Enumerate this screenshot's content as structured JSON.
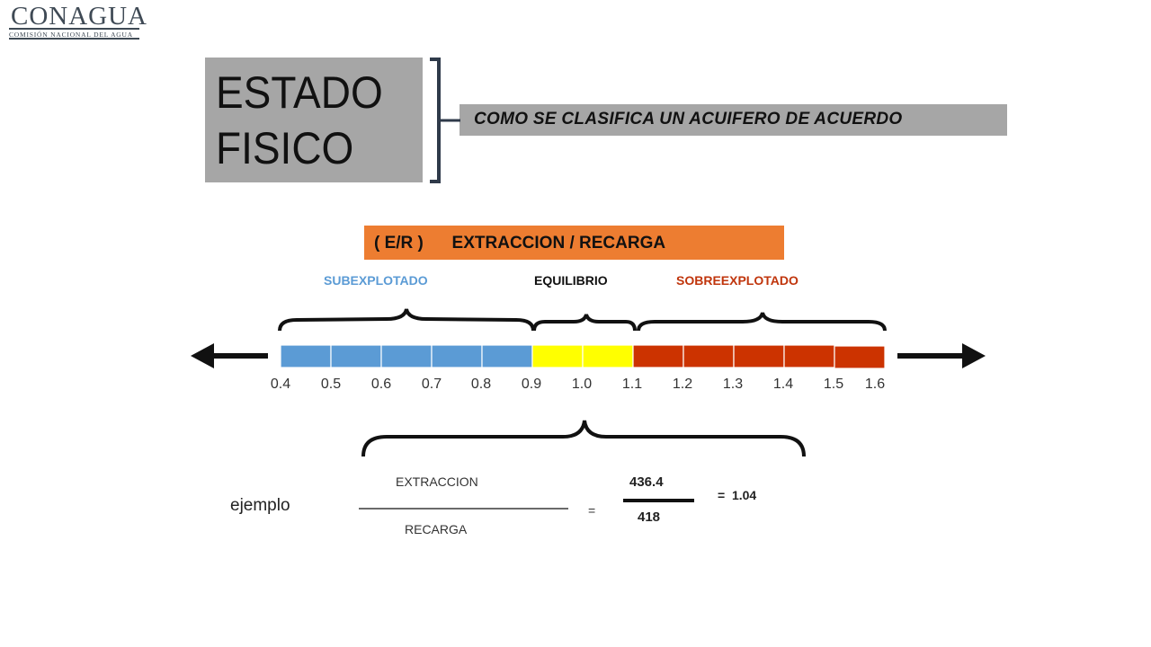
{
  "logo": {
    "name": "CONAGUA",
    "subtitle": "COMISIÓN NACIONAL DEL AGUA"
  },
  "title": "ESTADO\nFISICO",
  "subtitle": "COMO SE CLASIFICA UN ACUIFERO DE ACUERDO",
  "ratio_label": "( E/R )      EXTRACCION / RECARGA",
  "categories": {
    "sub": {
      "label": "SUBEXPLOTADO",
      "color": "#5b9bd5"
    },
    "eq": {
      "label": "EQUILIBRIO",
      "color": "#111111"
    },
    "sobre": {
      "label": "SOBREEXPLOTADO",
      "color": "#c0350c"
    }
  },
  "scale": {
    "ticks": [
      "0.4",
      "0.5",
      "0.6",
      "0.7",
      "0.8",
      "0.9",
      "1.0",
      "1.1",
      "1.2",
      "1.3",
      "1.4",
      "1.5",
      "1.6"
    ],
    "segment_colors": [
      "#5b9bd5",
      "#5b9bd5",
      "#5b9bd5",
      "#5b9bd5",
      "#5b9bd5",
      "#ffff00",
      "#ffff00",
      "#cc3300",
      "#cc3300",
      "#cc3300",
      "#cc3300",
      "#cc3300"
    ]
  },
  "example": {
    "label": "ejemplo",
    "numerator": "EXTRACCION",
    "denominator": "RECARGA",
    "equals": "=",
    "num_value": "436.4",
    "den_value": "418",
    "result": "=  1.04"
  }
}
